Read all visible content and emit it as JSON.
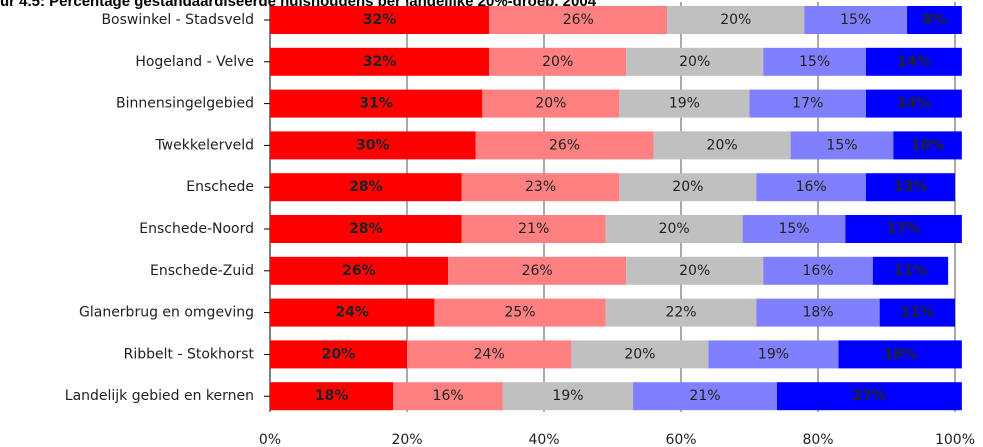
{
  "chart_data": {
    "type": "stacked-bar-horizontal",
    "title": "ur 4.5: Percentage gestandaardiseerde huishoudens per landelijke 20%-groep, 2004",
    "categories": [
      "Boswinkel - Stadsveld",
      "Hogeland - Velve",
      "Binnensingelgebied",
      "Twekkelerveld",
      "Enschede",
      "Enschede-Noord",
      "Enschede-Zuid",
      "Glanerbrug en omgeving",
      "Ribbelt - Stokhorst",
      "Landelijk gebied en kernen"
    ],
    "series": [
      {
        "color": "#ff0000",
        "label_color": "#ffffff",
        "values": [
          32,
          32,
          31,
          30,
          28,
          28,
          26,
          24,
          20,
          18
        ],
        "value_labels": [
          "32%",
          "32%",
          "31%",
          "30%",
          "28%",
          "28%",
          "26%",
          "24%",
          "20%",
          "18%"
        ]
      },
      {
        "color": "#ff8080",
        "label_color": "#333333",
        "values": [
          26,
          20,
          20,
          26,
          23,
          21,
          26,
          25,
          24,
          16
        ],
        "value_labels": [
          "26%",
          "20%",
          "20%",
          "26%",
          "23%",
          "21%",
          "26%",
          "25%",
          "24%",
          "16%"
        ]
      },
      {
        "color": "#c0c0c0",
        "label_color": "#333333",
        "values": [
          20,
          20,
          19,
          20,
          20,
          20,
          20,
          22,
          20,
          19
        ],
        "value_labels": [
          "20%",
          "20%",
          "19%",
          "20%",
          "20%",
          "20%",
          "20%",
          "22%",
          "20%",
          "19%"
        ]
      },
      {
        "color": "#8080ff",
        "label_color": "#333333",
        "values": [
          15,
          15,
          17,
          15,
          16,
          15,
          16,
          18,
          19,
          21
        ],
        "value_labels": [
          "15%",
          "15%",
          "17%",
          "15%",
          "16%",
          "15%",
          "16%",
          "18%",
          "19%",
          "21%"
        ]
      },
      {
        "color": "#0000ff",
        "label_color": "#ffffff",
        "values": [
          8,
          14,
          14,
          10,
          13,
          17,
          11,
          11,
          18,
          27
        ],
        "value_labels": [
          "8%",
          "14%",
          "14%",
          "10%",
          "13%",
          "17%",
          "11%",
          "11%",
          "18%",
          "27%"
        ]
      }
    ],
    "xlim": [
      0,
      100
    ],
    "xticks": [
      {
        "value": 0,
        "label": "0%"
      },
      {
        "value": 20,
        "label": "20%"
      },
      {
        "value": 40,
        "label": "40%"
      },
      {
        "value": 60,
        "label": "60%"
      },
      {
        "value": 80,
        "label": "80%"
      },
      {
        "value": 100,
        "label": "100%"
      }
    ],
    "grid": true
  }
}
